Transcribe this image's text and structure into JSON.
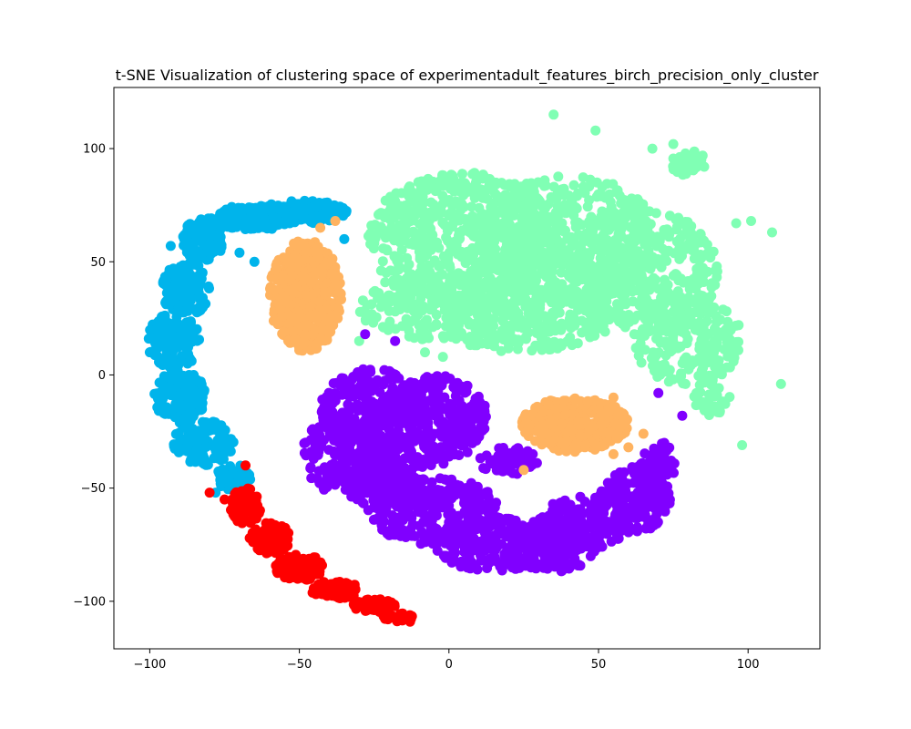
{
  "chart_data": {
    "type": "scatter",
    "title": "t-SNE Visualization of clustering space of experimentadult_features_birch_precision_only_cluster",
    "xlabel": "",
    "ylabel": "",
    "xlim": [
      -112,
      124
    ],
    "ylim": [
      -121,
      127
    ],
    "xticks": [
      -100,
      -50,
      0,
      50,
      100
    ],
    "yticks": [
      -100,
      -50,
      0,
      50,
      100
    ],
    "xtick_labels": [
      "−100",
      "−50",
      "0",
      "50",
      "100"
    ],
    "ytick_labels": [
      "−100",
      "−50",
      "0",
      "50",
      "100"
    ],
    "grid": false,
    "legend": "none",
    "series": [
      {
        "color": "#80ffb4",
        "blobs": [
          {
            "cx": 5,
            "cy": 60,
            "rx": 32,
            "ry": 30,
            "n": 650
          },
          {
            "cx": 40,
            "cy": 60,
            "rx": 30,
            "ry": 28,
            "n": 500
          },
          {
            "cx": 65,
            "cy": 45,
            "rx": 25,
            "ry": 28,
            "n": 380
          },
          {
            "cx": 80,
            "cy": 15,
            "rx": 18,
            "ry": 20,
            "n": 220
          },
          {
            "cx": 25,
            "cy": 25,
            "rx": 30,
            "ry": 15,
            "n": 280
          },
          {
            "cx": -5,
            "cy": 30,
            "rx": 25,
            "ry": 15,
            "n": 180
          },
          {
            "cx": 80,
            "cy": 94,
            "rx": 6,
            "ry": 6,
            "n": 40
          },
          {
            "cx": 88,
            "cy": -10,
            "rx": 6,
            "ry": 8,
            "n": 35
          }
        ],
        "points": [
          [
            35,
            115
          ],
          [
            49,
            108
          ],
          [
            68,
            100
          ],
          [
            75,
            102
          ],
          [
            108,
            63
          ],
          [
            111,
            -4
          ],
          [
            98,
            -31
          ],
          [
            -30,
            15
          ],
          [
            -8,
            10
          ],
          [
            -2,
            8
          ],
          [
            96,
            67
          ],
          [
            101,
            68
          ]
        ]
      },
      {
        "color": "#8000ff",
        "blobs": [
          {
            "cx": -25,
            "cy": -15,
            "rx": 18,
            "ry": 18,
            "n": 260
          },
          {
            "cx": -35,
            "cy": -35,
            "rx": 14,
            "ry": 18,
            "n": 200
          },
          {
            "cx": -22,
            "cy": -45,
            "rx": 14,
            "ry": 14,
            "n": 200
          },
          {
            "cx": -5,
            "cy": -20,
            "rx": 18,
            "ry": 20,
            "n": 280
          },
          {
            "cx": -5,
            "cy": -60,
            "rx": 22,
            "ry": 15,
            "n": 260
          },
          {
            "cx": 15,
            "cy": -75,
            "rx": 20,
            "ry": 12,
            "n": 220
          },
          {
            "cx": 35,
            "cy": -75,
            "rx": 15,
            "ry": 12,
            "n": 180
          },
          {
            "cx": 45,
            "cy": -65,
            "rx": 15,
            "ry": 12,
            "n": 150
          },
          {
            "cx": 62,
            "cy": -55,
            "rx": 12,
            "ry": 15,
            "n": 160
          },
          {
            "cx": 70,
            "cy": -40,
            "rx": 6,
            "ry": 10,
            "n": 70
          },
          {
            "cx": 20,
            "cy": -38,
            "rx": 10,
            "ry": 6,
            "n": 50
          }
        ],
        "points": [
          [
            -28,
            18
          ],
          [
            -18,
            15
          ],
          [
            72,
            -30
          ],
          [
            70,
            -35
          ],
          [
            78,
            -18
          ],
          [
            70,
            -8
          ]
        ]
      },
      {
        "color": "#00b4eb",
        "blobs": [
          {
            "cx": -48,
            "cy": 72,
            "rx": 14,
            "ry": 5,
            "n": 150
          },
          {
            "cx": -65,
            "cy": 70,
            "rx": 14,
            "ry": 6,
            "n": 140
          },
          {
            "cx": -82,
            "cy": 60,
            "rx": 7,
            "ry": 10,
            "n": 120
          },
          {
            "cx": -88,
            "cy": 38,
            "rx": 8,
            "ry": 12,
            "n": 140
          },
          {
            "cx": -92,
            "cy": 15,
            "rx": 9,
            "ry": 12,
            "n": 140
          },
          {
            "cx": -90,
            "cy": -10,
            "rx": 9,
            "ry": 12,
            "n": 140
          },
          {
            "cx": -82,
            "cy": -30,
            "rx": 10,
            "ry": 10,
            "n": 120
          },
          {
            "cx": -72,
            "cy": -45,
            "rx": 6,
            "ry": 6,
            "n": 60
          }
        ],
        "points": [
          [
            -100,
            10
          ],
          [
            -93,
            57
          ],
          [
            -35,
            60
          ],
          [
            -78,
            -52
          ],
          [
            -65,
            50
          ],
          [
            -70,
            54
          ]
        ]
      },
      {
        "color": "#ffb360",
        "blobs": [
          {
            "cx": -48,
            "cy": 35,
            "rx": 12,
            "ry": 25,
            "n": 420
          },
          {
            "cx": 42,
            "cy": -22,
            "rx": 18,
            "ry": 12,
            "n": 360
          }
        ],
        "points": [
          [
            -43,
            65
          ],
          [
            -38,
            68
          ],
          [
            55,
            -35
          ],
          [
            60,
            -32
          ],
          [
            65,
            -26
          ],
          [
            25,
            -42
          ],
          [
            55,
            -10
          ]
        ]
      },
      {
        "color": "#ff0000",
        "blobs": [
          {
            "cx": -68,
            "cy": -58,
            "rx": 5,
            "ry": 8,
            "n": 90
          },
          {
            "cx": -60,
            "cy": -72,
            "rx": 7,
            "ry": 7,
            "n": 90
          },
          {
            "cx": -50,
            "cy": -85,
            "rx": 8,
            "ry": 6,
            "n": 90
          },
          {
            "cx": -38,
            "cy": -95,
            "rx": 8,
            "ry": 4,
            "n": 80
          },
          {
            "cx": -25,
            "cy": -102,
            "rx": 7,
            "ry": 3,
            "n": 60
          },
          {
            "cx": -17,
            "cy": -107,
            "rx": 5,
            "ry": 2,
            "n": 30
          }
        ],
        "points": [
          [
            -80,
            -52
          ],
          [
            -13,
            -109
          ],
          [
            -68,
            -40
          ],
          [
            -75,
            -55
          ]
        ]
      }
    ]
  }
}
